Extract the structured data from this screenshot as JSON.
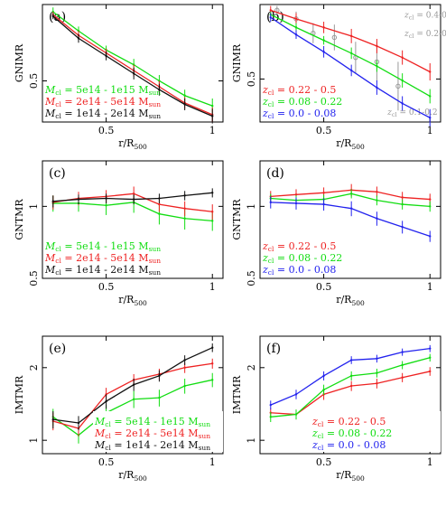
{
  "chart_data": [
    {
      "type": "line",
      "panel_label": "(a)",
      "xlabel": "r/R",
      "xlabel_sub": "500",
      "ylabel": "GNIMR",
      "xlim": [
        0.2,
        1.05
      ],
      "ylim": [
        0.22,
        1.02
      ],
      "ylog": false,
      "xticks": [
        {
          "v": 0.5,
          "label": "0.5"
        },
        {
          "v": 1.0,
          "label": "1"
        }
      ],
      "yticks": [
        {
          "v": 0.5,
          "label": "0.5"
        }
      ],
      "legend_position": "bottom-left",
      "series": [
        {
          "name_prefix": "M",
          "name_sub": "cl",
          "name_rest": " = 5e14 - 1e15 M",
          "name_sub2": "sun",
          "color": "#11dd11",
          "x": [
            0.25,
            0.37,
            0.5,
            0.63,
            0.75,
            0.87,
            1.0
          ],
          "y": [
            0.97,
            0.84,
            0.71,
            0.61,
            0.5,
            0.4,
            0.33
          ],
          "err": [
            0.03,
            0.03,
            0.03,
            0.04,
            0.04,
            0.04,
            0.05
          ]
        },
        {
          "name_prefix": "M",
          "name_sub": "cl",
          "name_rest": " = 2e14 - 5e14 M",
          "name_sub2": "sun",
          "color": "#ee2222",
          "x": [
            0.25,
            0.37,
            0.5,
            0.63,
            0.75,
            0.87,
            1.0
          ],
          "y": [
            0.95,
            0.81,
            0.69,
            0.57,
            0.46,
            0.35,
            0.27
          ],
          "err": [
            0.02,
            0.03,
            0.03,
            0.04,
            0.04,
            0.04,
            0.05
          ]
        },
        {
          "name_prefix": "M",
          "name_sub": "cl",
          "name_rest": " = 1e14 - 2e14 M",
          "name_sub2": "sun",
          "color": "#111111",
          "x": [
            0.25,
            0.37,
            0.5,
            0.63,
            0.75,
            0.87,
            1.0
          ],
          "y": [
            0.94,
            0.79,
            0.67,
            0.55,
            0.44,
            0.34,
            0.26
          ],
          "err": [
            0.02,
            0.03,
            0.03,
            0.04,
            0.04,
            0.04,
            0.05
          ]
        }
      ]
    },
    {
      "type": "line",
      "panel_label": "(b)",
      "xlabel": "r/R",
      "xlabel_sub": "500",
      "ylabel": "GNIMR",
      "xlim": [
        0.2,
        1.05
      ],
      "ylim": [
        0.2,
        1.02
      ],
      "ylog": false,
      "xticks": [
        {
          "v": 0.5,
          "label": "0.5"
        },
        {
          "v": 1.0,
          "label": "1"
        }
      ],
      "yticks": [
        {
          "v": 0.5,
          "label": "0.5"
        }
      ],
      "legend_position": "bottom-left",
      "series": [
        {
          "name_prefix": "z",
          "name_sub": "cl",
          "name_rest": " = 0.22 - 0.5",
          "color": "#ee2222",
          "x": [
            0.25,
            0.37,
            0.5,
            0.63,
            0.75,
            0.87,
            1.0
          ],
          "y": [
            0.98,
            0.92,
            0.86,
            0.8,
            0.73,
            0.65,
            0.55
          ],
          "err": [
            0.03,
            0.04,
            0.04,
            0.05,
            0.05,
            0.05,
            0.06
          ]
        },
        {
          "name_prefix": "z",
          "name_sub": "cl",
          "name_rest": " = 0.08 - 0.22",
          "color": "#11dd11",
          "x": [
            0.25,
            0.37,
            0.5,
            0.63,
            0.75,
            0.87,
            1.0
          ],
          "y": [
            0.95,
            0.86,
            0.77,
            0.68,
            0.59,
            0.49,
            0.38
          ],
          "err": [
            0.02,
            0.03,
            0.03,
            0.04,
            0.04,
            0.05,
            0.05
          ]
        },
        {
          "name_prefix": "z",
          "name_sub": "cl",
          "name_rest": " = 0.0 - 0.08",
          "color": "#2222ee",
          "x": [
            0.25,
            0.37,
            0.5,
            0.63,
            0.75,
            0.87,
            1.0
          ],
          "y": [
            0.93,
            0.81,
            0.69,
            0.56,
            0.44,
            0.33,
            0.23
          ],
          "err": [
            0.03,
            0.03,
            0.04,
            0.04,
            0.05,
            0.05,
            0.06
          ]
        }
      ],
      "comparison": {
        "color": "#999999",
        "labels": [
          {
            "prefix": "z",
            "sub": "cl",
            "rest": " = 0.4-0.9",
            "x": 0.88,
            "y": 0.93
          },
          {
            "prefix": "z",
            "sub": "cl",
            "rest": " = 0.2-0.4",
            "x": 0.88,
            "y": 0.8
          },
          {
            "prefix": "z",
            "sub": "cl",
            "rest": " = 0.1-0.2",
            "x": 0.8,
            "y": 0.25
          }
        ],
        "x": [
          0.28,
          0.37,
          0.45,
          0.55,
          0.65,
          0.75,
          0.85
        ],
        "y": [
          0.98,
          0.92,
          0.82,
          0.79,
          0.65,
          0.62,
          0.45
        ],
        "err": [
          0.03,
          0.05,
          0.07,
          0.09,
          0.11,
          0.14,
          0.17
        ]
      }
    },
    {
      "type": "line",
      "panel_label": "(c)",
      "xlabel": "r/R",
      "xlabel_sub": "500",
      "ylabel": "GNTMR",
      "xlim": [
        0.2,
        1.05
      ],
      "ylim": [
        0.5,
        1.55
      ],
      "ylog": true,
      "xticks": [
        {
          "v": 0.5,
          "label": "0.5"
        },
        {
          "v": 1.0,
          "label": "1"
        }
      ],
      "yticks": [
        {
          "v": 0.5,
          "label": "0.5"
        },
        {
          "v": 1.0,
          "label": "1"
        }
      ],
      "legend_position": "bottom-left",
      "series": [
        {
          "name_prefix": "M",
          "name_sub": "cl",
          "name_rest": " = 5e14 - 1e15 M",
          "name_sub2": "sun",
          "color": "#11dd11",
          "x": [
            0.25,
            0.37,
            0.5,
            0.63,
            0.75,
            0.87,
            1.0
          ],
          "y": [
            1.03,
            1.03,
            1.01,
            1.04,
            0.93,
            0.89,
            0.87
          ],
          "err": [
            0.08,
            0.08,
            0.09,
            0.1,
            0.09,
            0.09,
            0.08
          ]
        },
        {
          "name_prefix": "M",
          "name_sub": "cl",
          "name_rest": " = 2e14 - 5e14 M",
          "name_sub2": "sun",
          "color": "#ee2222",
          "x": [
            0.25,
            0.37,
            0.5,
            0.63,
            0.75,
            0.87,
            1.0
          ],
          "y": [
            1.04,
            1.08,
            1.1,
            1.13,
            1.02,
            0.98,
            0.95
          ],
          "err": [
            0.07,
            0.07,
            0.07,
            0.08,
            0.07,
            0.07,
            0.07
          ]
        },
        {
          "name_prefix": "M",
          "name_sub": "cl",
          "name_rest": " = 1e14 - 2e14 M",
          "name_sub2": "sun",
          "color": "#111111",
          "x": [
            0.25,
            0.37,
            0.5,
            0.63,
            0.75,
            0.87,
            1.0
          ],
          "y": [
            1.05,
            1.07,
            1.08,
            1.07,
            1.08,
            1.11,
            1.14
          ],
          "err": [
            0.06,
            0.05,
            0.05,
            0.05,
            0.05,
            0.05,
            0.05
          ]
        }
      ]
    },
    {
      "type": "line",
      "panel_label": "(d)",
      "xlabel": "r/R",
      "xlabel_sub": "500",
      "ylabel": "GNTMR",
      "xlim": [
        0.2,
        1.05
      ],
      "ylim": [
        0.5,
        1.55
      ],
      "ylog": true,
      "xticks": [
        {
          "v": 0.5,
          "label": "0.5"
        },
        {
          "v": 1.0,
          "label": "1"
        }
      ],
      "yticks": [
        {
          "v": 0.5,
          "label": "0.5"
        },
        {
          "v": 1.0,
          "label": "1"
        }
      ],
      "legend_position": "bottom-left",
      "series": [
        {
          "name_prefix": "z",
          "name_sub": "cl",
          "name_rest": " = 0.22 - 0.5",
          "color": "#ee2222",
          "x": [
            0.25,
            0.37,
            0.5,
            0.63,
            0.75,
            0.87,
            1.0
          ],
          "y": [
            1.1,
            1.12,
            1.14,
            1.17,
            1.15,
            1.09,
            1.07
          ],
          "err": [
            0.06,
            0.06,
            0.06,
            0.07,
            0.06,
            0.06,
            0.06
          ]
        },
        {
          "name_prefix": "z",
          "name_sub": "cl",
          "name_rest": " = 0.08 - 0.22",
          "color": "#11dd11",
          "x": [
            0.25,
            0.37,
            0.5,
            0.63,
            0.75,
            0.87,
            1.0
          ],
          "y": [
            1.08,
            1.06,
            1.07,
            1.13,
            1.06,
            1.02,
            1.0
          ],
          "err": [
            0.05,
            0.05,
            0.05,
            0.05,
            0.05,
            0.05,
            0.05
          ]
        },
        {
          "name_prefix": "z",
          "name_sub": "cl",
          "name_rest": " = 0.0 - 0.08",
          "color": "#2222ee",
          "x": [
            0.25,
            0.37,
            0.5,
            0.63,
            0.75,
            0.87,
            1.0
          ],
          "y": [
            1.04,
            1.03,
            1.02,
            0.98,
            0.89,
            0.82,
            0.75
          ],
          "err": [
            0.06,
            0.06,
            0.06,
            0.07,
            0.06,
            0.05,
            0.04
          ]
        }
      ]
    },
    {
      "type": "line",
      "panel_label": "(e)",
      "xlabel": "r/R",
      "xlabel_sub": "500",
      "ylabel": "IMTMR",
      "xlim": [
        0.2,
        1.05
      ],
      "ylim": [
        0.88,
        2.7
      ],
      "ylog": true,
      "xticks": [
        {
          "v": 0.5,
          "label": "0.5"
        },
        {
          "v": 1.0,
          "label": "1"
        }
      ],
      "yticks": [
        {
          "v": 1.0,
          "label": "1"
        },
        {
          "v": 2.0,
          "label": "2"
        }
      ],
      "legend_position": "bottom-right",
      "series": [
        {
          "name_prefix": "M",
          "name_sub": "cl",
          "name_rest": " = 5e14 - 1e15 M",
          "name_sub2": "sun",
          "color": "#11dd11",
          "x": [
            0.25,
            0.37,
            0.5,
            0.63,
            0.75,
            0.87,
            1.0
          ],
          "y": [
            1.25,
            1.05,
            1.3,
            1.48,
            1.5,
            1.68,
            1.78
          ],
          "err": [
            0.1,
            0.08,
            0.1,
            0.12,
            0.12,
            0.12,
            0.12
          ]
        },
        {
          "name_prefix": "M",
          "name_sub": "cl",
          "name_rest": " = 2e14 - 5e14 M",
          "name_sub2": "sun",
          "color": "#ee2222",
          "x": [
            0.25,
            0.37,
            0.5,
            0.63,
            0.75,
            0.87,
            1.0
          ],
          "y": [
            1.2,
            1.12,
            1.55,
            1.78,
            1.88,
            2.0,
            2.08
          ],
          "err": [
            0.1,
            0.08,
            0.1,
            0.1,
            0.1,
            0.1,
            0.1
          ]
        },
        {
          "name_prefix": "M",
          "name_sub": "cl",
          "name_rest": " = 1e14 - 2e14 M",
          "name_sub2": "sun",
          "color": "#111111",
          "x": [
            0.25,
            0.37,
            0.5,
            0.63,
            0.75,
            0.87,
            1.0
          ],
          "y": [
            1.22,
            1.18,
            1.45,
            1.7,
            1.85,
            2.15,
            2.42
          ],
          "err": [
            0.1,
            0.08,
            0.1,
            0.1,
            0.1,
            0.1,
            0.1
          ]
        }
      ]
    },
    {
      "type": "line",
      "panel_label": "(f)",
      "xlabel": "r/R",
      "xlabel_sub": "500",
      "ylabel": "IMTMR",
      "xlim": [
        0.2,
        1.05
      ],
      "ylim": [
        0.88,
        2.7
      ],
      "ylog": true,
      "xticks": [
        {
          "v": 0.5,
          "label": "0.5"
        },
        {
          "v": 1.0,
          "label": "1"
        }
      ],
      "yticks": [
        {
          "v": 1.0,
          "label": "1"
        },
        {
          "v": 2.0,
          "label": "2"
        }
      ],
      "legend_position": "bottom-right",
      "series": [
        {
          "name_prefix": "z",
          "name_sub": "cl",
          "name_rest": " = 0.22 - 0.5",
          "color": "#ee2222",
          "x": [
            0.25,
            0.37,
            0.5,
            0.63,
            0.75,
            0.87,
            1.0
          ],
          "y": [
            1.3,
            1.28,
            1.55,
            1.68,
            1.72,
            1.82,
            1.93
          ],
          "err": [
            0.06,
            0.06,
            0.08,
            0.08,
            0.08,
            0.08,
            0.08
          ]
        },
        {
          "name_prefix": "z",
          "name_sub": "cl",
          "name_rest": " = 0.08 - 0.22",
          "color": "#11dd11",
          "x": [
            0.25,
            0.37,
            0.5,
            0.63,
            0.75,
            0.87,
            1.0
          ],
          "y": [
            1.25,
            1.28,
            1.62,
            1.85,
            1.9,
            2.05,
            2.2
          ],
          "err": [
            0.06,
            0.06,
            0.08,
            0.08,
            0.08,
            0.08,
            0.08
          ]
        },
        {
          "name_prefix": "z",
          "name_sub": "cl",
          "name_rest": " = 0.0 - 0.08",
          "color": "#2222ee",
          "x": [
            0.25,
            0.37,
            0.5,
            0.63,
            0.75,
            0.87,
            1.0
          ],
          "y": [
            1.4,
            1.55,
            1.85,
            2.15,
            2.18,
            2.32,
            2.4
          ],
          "err": [
            0.06,
            0.07,
            0.08,
            0.08,
            0.08,
            0.08,
            0.08
          ]
        }
      ]
    }
  ]
}
